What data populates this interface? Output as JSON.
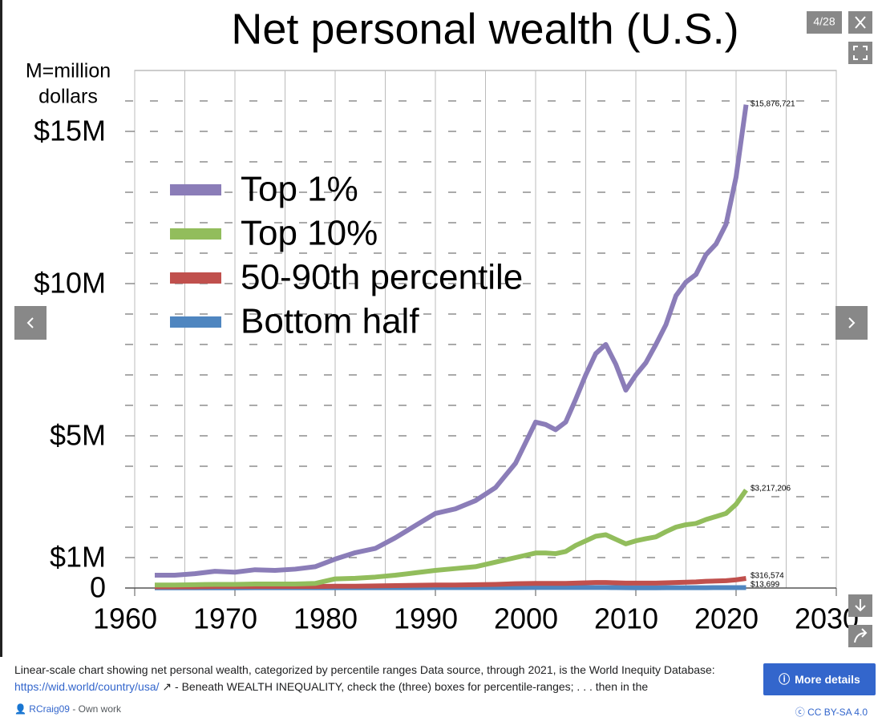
{
  "viewer": {
    "counter": "4/28"
  },
  "chart_data": {
    "type": "line",
    "title": "Net personal wealth (U.S.)",
    "y_label_lines": [
      "M=million",
      "dollars"
    ],
    "x": [
      1962,
      1964,
      1966,
      1968,
      1970,
      1972,
      1974,
      1976,
      1978,
      1980,
      1982,
      1984,
      1986,
      1988,
      1990,
      1992,
      1994,
      1996,
      1998,
      2000,
      2001,
      2002,
      2003,
      2004,
      2005,
      2006,
      2007,
      2008,
      2009,
      2010,
      2011,
      2012,
      2013,
      2014,
      2015,
      2016,
      2017,
      2018,
      2019,
      2020,
      2021
    ],
    "series": [
      {
        "name": "Top 1%",
        "color": "#8b7db8",
        "end_label": "$15,876,721",
        "values": [
          420000,
          420000,
          470000,
          550000,
          520000,
          600000,
          580000,
          620000,
          700000,
          950000,
          1160000,
          1300000,
          1650000,
          2050000,
          2450000,
          2600000,
          2870000,
          3300000,
          4100000,
          5450000,
          5370000,
          5200000,
          5450000,
          6200000,
          7000000,
          7700000,
          8000000,
          7350000,
          6500000,
          7000000,
          7400000,
          8000000,
          8650000,
          9600000,
          10050000,
          10300000,
          10950000,
          11300000,
          11950000,
          13500000,
          15876721
        ]
      },
      {
        "name": "Top 10%",
        "color": "#92bd5c",
        "end_label": "$3,217,206",
        "values": [
          100000,
          100000,
          110000,
          120000,
          120000,
          130000,
          130000,
          130000,
          150000,
          300000,
          320000,
          360000,
          420000,
          500000,
          580000,
          640000,
          700000,
          850000,
          1000000,
          1150000,
          1150000,
          1130000,
          1200000,
          1400000,
          1550000,
          1700000,
          1750000,
          1600000,
          1450000,
          1550000,
          1620000,
          1680000,
          1850000,
          2000000,
          2080000,
          2120000,
          2250000,
          2350000,
          2450000,
          2750000,
          3217206
        ]
      },
      {
        "name": "50-90th percentile",
        "color": "#c0504d",
        "end_label": "$316,574",
        "values": [
          40000,
          40000,
          40000,
          50000,
          50000,
          50000,
          50000,
          50000,
          50000,
          60000,
          60000,
          70000,
          80000,
          90000,
          100000,
          100000,
          110000,
          120000,
          140000,
          150000,
          150000,
          150000,
          150000,
          160000,
          170000,
          180000,
          180000,
          170000,
          160000,
          160000,
          160000,
          160000,
          170000,
          180000,
          190000,
          200000,
          220000,
          230000,
          240000,
          270000,
          316574
        ]
      },
      {
        "name": "Bottom half",
        "color": "#4f86c0",
        "end_label": "$13,699",
        "values": [
          8000,
          8000,
          8000,
          8000,
          8000,
          9000,
          9000,
          9000,
          9000,
          10000,
          10000,
          10000,
          11000,
          11000,
          12000,
          12000,
          12000,
          13000,
          14000,
          15000,
          15000,
          15000,
          15000,
          16000,
          16000,
          16000,
          15000,
          12000,
          9000,
          8000,
          8000,
          8000,
          9000,
          10000,
          10000,
          11000,
          11000,
          12000,
          12000,
          13000,
          13699
        ]
      }
    ],
    "xlim": [
      1960,
      2030
    ],
    "xticks": [
      1960,
      1970,
      1980,
      1990,
      2000,
      2010,
      2020,
      2030
    ],
    "xgrid": [
      1960,
      1965,
      1970,
      1975,
      1980,
      1985,
      1990,
      1995,
      2000,
      2005,
      2010,
      2015,
      2020,
      2025,
      2030
    ],
    "ylim": [
      0,
      17000000
    ],
    "yticks": [
      {
        "value": 0,
        "label": "0"
      },
      {
        "value": 1000000,
        "label": "$1M"
      },
      {
        "value": 5000000,
        "label": "$5M"
      },
      {
        "value": 10000000,
        "label": "$10M"
      },
      {
        "value": 15000000,
        "label": "$15M"
      }
    ],
    "ygrid": [
      1000000,
      2000000,
      3000000,
      4000000,
      5000000,
      6000000,
      7000000,
      8000000,
      9000000,
      10000000,
      11000000,
      12000000,
      13000000,
      14000000,
      15000000,
      16000000
    ],
    "legend": "upper left"
  },
  "caption": {
    "text_1": "Linear-scale chart showing net personal wealth, categorized by percentile ranges Data source, through 2021, is the World Inequity Database: ",
    "link": "https://wid.world/country/usa/",
    "text_2": " - Beneath WEALTH INEQUALITY, check the (three) boxes for percentile-ranges; . . . then in the"
  },
  "author": {
    "name": "RCraig09",
    "note": " - Own work"
  },
  "buttons": {
    "more_details": "More details"
  },
  "license": "CC BY-SA 4.0"
}
